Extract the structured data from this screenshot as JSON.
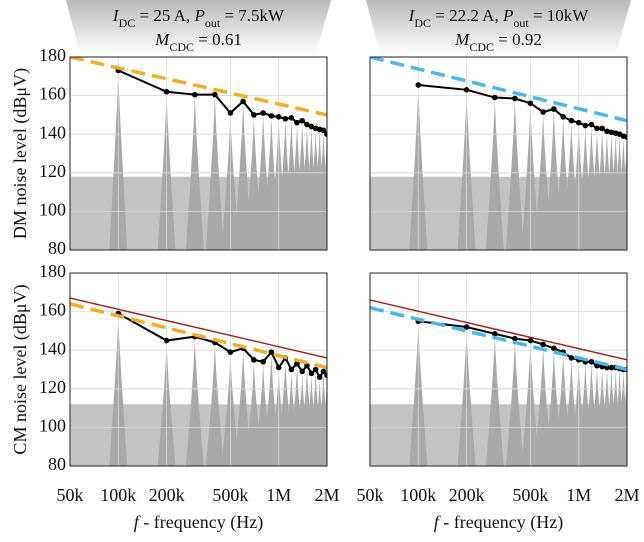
{
  "chart_data": [
    {
      "type": "line",
      "title_lines": [
        [
          {
            "text": "I",
            "style": "italic"
          },
          {
            "text": "DC",
            "style": "sub"
          },
          {
            "text": " = 25 A, "
          },
          {
            "text": "P",
            "style": "italic"
          },
          {
            "text": "out",
            "style": "sub"
          },
          {
            "text": " = 7.5kW"
          }
        ],
        [
          {
            "text": "M",
            "style": "italic"
          },
          {
            "text": "CDC",
            "style": "sub"
          },
          {
            "text": " = 0.61"
          }
        ]
      ],
      "ylabel": "DM noise level (dBμV)",
      "xscale": "log",
      "grid": true,
      "noise_floor": 118,
      "xlim": [
        50000,
        2000000
      ],
      "ylim": [
        80,
        180
      ],
      "yticks": [
        80,
        100,
        120,
        140,
        160,
        180
      ],
      "xticks": [
        {
          "value": 50000,
          "label": "50k"
        },
        {
          "value": 100000,
          "label": "100k"
        },
        {
          "value": 200000,
          "label": "200k"
        },
        {
          "value": 500000,
          "label": "500k"
        },
        {
          "value": 1000000,
          "label": "1M"
        },
        {
          "value": 2000000,
          "label": "2M"
        }
      ],
      "show_xtick_labels": false,
      "show_ytick_labels": true,
      "series": [
        {
          "role": "envelope",
          "color": "#000000",
          "x": [
            100000,
            200000,
            300000,
            400000,
            500000,
            600000,
            700000,
            800000,
            900000,
            1000000,
            1100000,
            1200000,
            1300000,
            1400000,
            1500000,
            1600000,
            1700000,
            1800000,
            1900000,
            2000000
          ],
          "values": [
            173,
            162,
            160.5,
            160.5,
            151,
            157,
            150,
            151,
            149.5,
            149,
            148,
            148.5,
            146,
            147,
            145,
            144,
            143,
            142.5,
            142,
            140
          ]
        },
        {
          "role": "dashed",
          "color": "#f0b020",
          "x": [
            50000,
            2000000
          ],
          "values": [
            180,
            150
          ]
        }
      ]
    },
    {
      "type": "line",
      "title_lines": [
        [
          {
            "text": "I",
            "style": "italic"
          },
          {
            "text": "DC",
            "style": "sub"
          },
          {
            "text": " = 22.2 A, "
          },
          {
            "text": "P",
            "style": "italic"
          },
          {
            "text": "out",
            "style": "sub"
          },
          {
            "text": " = 10kW"
          }
        ],
        [
          {
            "text": "M",
            "style": "italic"
          },
          {
            "text": "CDC",
            "style": "sub"
          },
          {
            "text": " = 0.92"
          }
        ]
      ],
      "xscale": "log",
      "grid": true,
      "noise_floor": 118,
      "xlim": [
        50000,
        2000000
      ],
      "ylim": [
        80,
        180
      ],
      "yticks": [
        80,
        100,
        120,
        140,
        160,
        180
      ],
      "xticks": [
        {
          "value": 50000,
          "label": "50k"
        },
        {
          "value": 100000,
          "label": "100k"
        },
        {
          "value": 200000,
          "label": "200k"
        },
        {
          "value": 500000,
          "label": "500k"
        },
        {
          "value": 1000000,
          "label": "1M"
        },
        {
          "value": 2000000,
          "label": "2M"
        }
      ],
      "show_xtick_labels": false,
      "show_ytick_labels": false,
      "series": [
        {
          "role": "envelope",
          "color": "#000000",
          "x": [
            100000,
            200000,
            300000,
            400000,
            500000,
            600000,
            700000,
            800000,
            900000,
            1000000,
            1100000,
            1200000,
            1300000,
            1400000,
            1500000,
            1600000,
            1700000,
            1800000,
            1900000,
            2000000
          ],
          "values": [
            165.5,
            163,
            159,
            158.5,
            156,
            151.5,
            153,
            149,
            147,
            146,
            144.5,
            145,
            143,
            143,
            141.5,
            141,
            140.5,
            140,
            139,
            138.5
          ]
        },
        {
          "role": "dashed",
          "color": "#4bb8e8",
          "x": [
            50000,
            2000000
          ],
          "values": [
            180,
            147
          ]
        }
      ]
    },
    {
      "type": "line",
      "ylabel": "CM noise level (dBμV)",
      "xlabel": [
        {
          "text": "f",
          "style": "italic"
        },
        {
          "text": " - frequency (Hz)"
        }
      ],
      "xscale": "log",
      "grid": true,
      "noise_floor": 112,
      "xlim": [
        50000,
        2000000
      ],
      "ylim": [
        80,
        180
      ],
      "yticks": [
        80,
        100,
        120,
        140,
        160,
        180
      ],
      "xticks": [
        {
          "value": 50000,
          "label": "50k"
        },
        {
          "value": 100000,
          "label": "100k"
        },
        {
          "value": 200000,
          "label": "200k"
        },
        {
          "value": 500000,
          "label": "500k"
        },
        {
          "value": 1000000,
          "label": "1M"
        },
        {
          "value": 2000000,
          "label": "2M"
        }
      ],
      "show_xtick_labels": true,
      "show_ytick_labels": true,
      "series": [
        {
          "role": "envelope",
          "color": "#000000",
          "x": [
            100000,
            200000,
            300000,
            400000,
            500000,
            600000,
            700000,
            800000,
            900000,
            1000000,
            1100000,
            1200000,
            1300000,
            1400000,
            1500000,
            1600000,
            1700000,
            1800000,
            1900000,
            2000000
          ],
          "values": [
            159,
            145,
            147,
            144,
            139,
            141,
            135,
            134,
            139,
            131,
            136,
            130,
            133,
            129,
            132,
            128,
            130,
            126,
            129,
            127
          ]
        },
        {
          "role": "solid",
          "color": "#9b1c1c",
          "x": [
            50000,
            2000000
          ],
          "values": [
            167,
            136
          ]
        },
        {
          "role": "dashed",
          "color": "#f0b020",
          "x": [
            50000,
            2000000
          ],
          "values": [
            164,
            131
          ]
        }
      ]
    },
    {
      "type": "line",
      "xlabel": [
        {
          "text": "f",
          "style": "italic"
        },
        {
          "text": " - frequency (Hz)"
        }
      ],
      "xscale": "log",
      "grid": true,
      "noise_floor": 112,
      "xlim": [
        50000,
        2000000
      ],
      "ylim": [
        80,
        180
      ],
      "yticks": [
        80,
        100,
        120,
        140,
        160,
        180
      ],
      "xticks": [
        {
          "value": 50000,
          "label": "50k"
        },
        {
          "value": 100000,
          "label": "100k"
        },
        {
          "value": 200000,
          "label": "200k"
        },
        {
          "value": 500000,
          "label": "500k"
        },
        {
          "value": 1000000,
          "label": "1M"
        },
        {
          "value": 2000000,
          "label": "2M"
        }
      ],
      "show_xtick_labels": true,
      "show_ytick_labels": false,
      "series": [
        {
          "role": "envelope",
          "color": "#000000",
          "x": [
            100000,
            200000,
            300000,
            400000,
            500000,
            600000,
            700000,
            800000,
            900000,
            1000000,
            1100000,
            1200000,
            1300000,
            1400000,
            1500000,
            1600000,
            1700000,
            1800000,
            1900000,
            2000000
          ],
          "values": [
            155,
            152,
            148.5,
            146,
            145,
            143,
            141,
            139,
            136,
            135,
            134,
            134,
            132,
            131.5,
            131,
            131,
            131,
            130.5,
            130,
            130
          ]
        },
        {
          "role": "solid",
          "color": "#9b1c1c",
          "x": [
            50000,
            2000000
          ],
          "values": [
            166,
            135
          ]
        },
        {
          "role": "dashed",
          "color": "#4bb8e8",
          "x": [
            50000,
            2000000
          ],
          "values": [
            162,
            130
          ]
        }
      ]
    }
  ]
}
